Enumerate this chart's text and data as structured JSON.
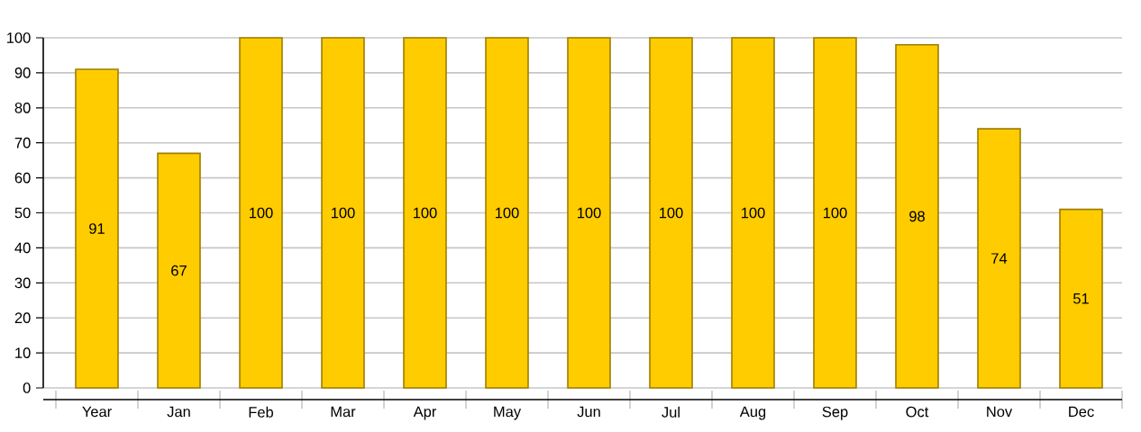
{
  "chart_data": {
    "type": "bar",
    "categories": [
      "Year",
      "Jan",
      "Feb",
      "Mar",
      "Apr",
      "May",
      "Jun",
      "Jul",
      "Aug",
      "Sep",
      "Oct",
      "Nov",
      "Dec"
    ],
    "values": [
      91,
      67,
      100,
      100,
      100,
      100,
      100,
      100,
      100,
      100,
      98,
      74,
      51
    ],
    "color": "#ffcc00",
    "ylim": [
      0,
      100
    ],
    "yticks": [
      0,
      10,
      20,
      30,
      40,
      50,
      60,
      70,
      80,
      90,
      100
    ],
    "grid": "y",
    "data_labels": true
  }
}
